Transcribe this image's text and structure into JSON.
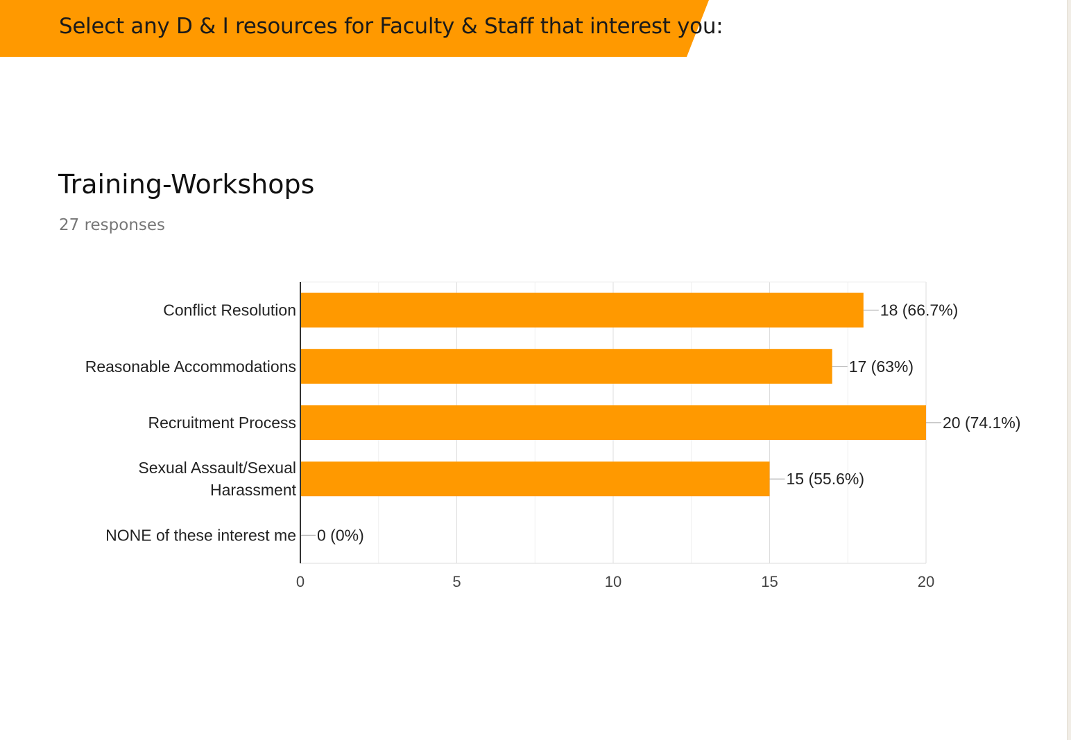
{
  "banner": {
    "text": "Select any D & I resources for Faculty & Staff that interest you:"
  },
  "colors": {
    "accent": "#ff9900",
    "text": "#222222",
    "muted": "#777777"
  },
  "chart_data": {
    "type": "bar",
    "orientation": "horizontal",
    "title": "Training-Workshops",
    "subtitle": "27 responses",
    "categories": [
      [
        "Conflict Resolution"
      ],
      [
        "Reasonable Accommodations"
      ],
      [
        "Recruitment Process"
      ],
      [
        "Sexual Assault/Sexual",
        "Harassment"
      ],
      [
        "NONE of these interest me"
      ]
    ],
    "values": [
      18,
      17,
      20,
      15,
      0
    ],
    "data_labels": [
      "18 (66.7%)",
      "17 (63%)",
      "20 (74.1%)",
      "15 (55.6%)",
      "0 (0%)"
    ],
    "xlim": [
      0,
      20
    ],
    "xticks": [
      0,
      5,
      10,
      15,
      20
    ],
    "grid": true,
    "color": "#ff9900"
  }
}
